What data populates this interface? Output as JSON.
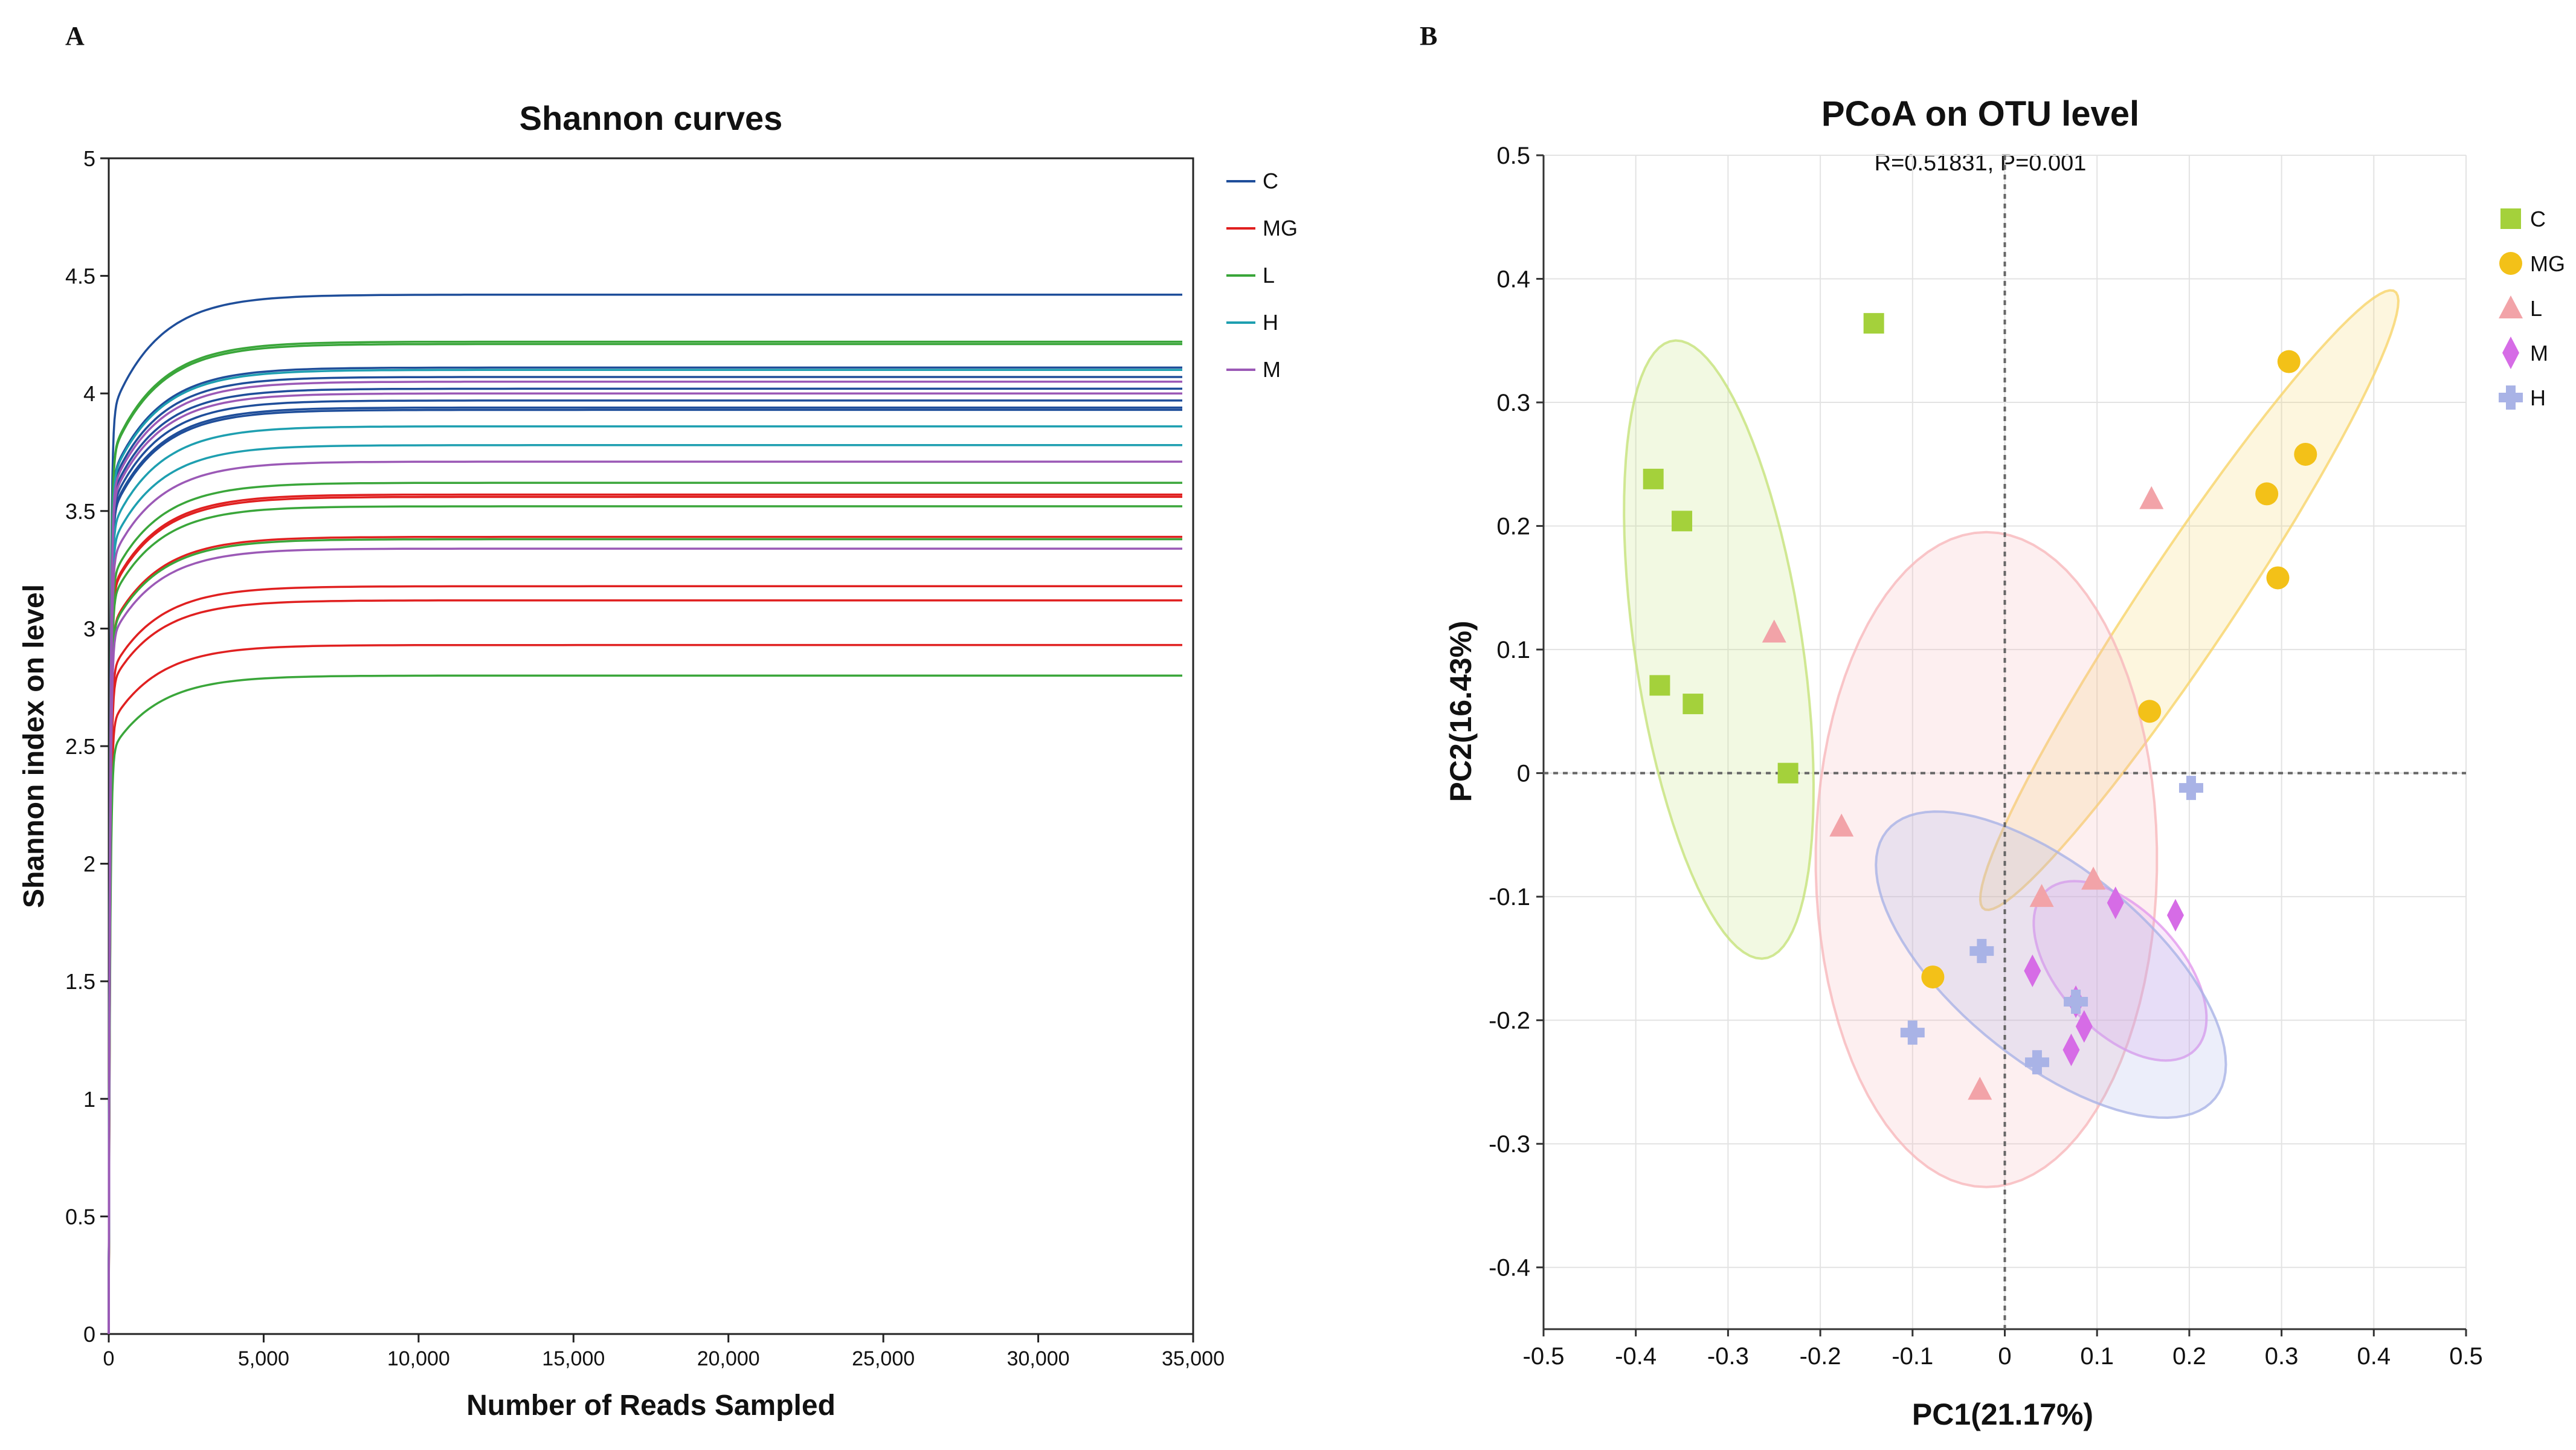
{
  "panel_a_letter": "A",
  "panel_b_letter": "B",
  "chart_data": [
    {
      "type": "line",
      "title": "Shannon curves",
      "xlabel": "Number of Reads Sampled",
      "ylabel": "Shannon index on level",
      "xlim": [
        0,
        35000
      ],
      "ylim": [
        0,
        5
      ],
      "x_ticks": [
        0,
        5000,
        10000,
        15000,
        20000,
        25000,
        30000,
        35000
      ],
      "x_tick_labels": [
        "0",
        "5,000",
        "10,000",
        "15,000",
        "20,000",
        "25,000",
        "30,000",
        "35,000"
      ],
      "y_ticks": [
        0,
        0.5,
        1,
        1.5,
        2,
        2.5,
        3,
        3.5,
        4,
        4.5,
        5
      ],
      "y_tick_labels": [
        "0",
        "0.5",
        "1",
        "1.5",
        "2",
        "2.5",
        "3",
        "3.5",
        "4",
        "4.5",
        "5"
      ],
      "grid": false,
      "legend_position": "top-right",
      "series": [
        {
          "name": "C",
          "color": "#1f4e9a",
          "plateaus": [
            4.42,
            4.11,
            4.07,
            4.02,
            3.97,
            3.94,
            3.93
          ]
        },
        {
          "name": "MG",
          "color": "#e02020",
          "plateaus": [
            3.57,
            3.56,
            3.39,
            3.18,
            3.12,
            2.93
          ]
        },
        {
          "name": "L",
          "color": "#3aa63a",
          "plateaus": [
            4.22,
            4.21,
            3.62,
            3.52,
            3.38,
            2.8
          ]
        },
        {
          "name": "H",
          "color": "#1e9fb0",
          "plateaus": [
            4.1,
            3.86,
            3.78
          ]
        },
        {
          "name": "M",
          "color": "#9b59b6",
          "plateaus": [
            4.05,
            4.0,
            3.71,
            3.34
          ]
        }
      ]
    },
    {
      "type": "scatter",
      "title": "PCoA on OTU level",
      "subtitle": "R=0.51831, P=0.001",
      "xlabel": "PC1(21.17%)",
      "ylabel": "PC2(16.43%)",
      "xlim": [
        -0.5,
        0.5
      ],
      "ylim": [
        -0.45,
        0.5
      ],
      "x_ticks": [
        -0.5,
        -0.4,
        -0.3,
        -0.2,
        -0.1,
        0,
        0.1,
        0.2,
        0.3,
        0.4,
        0.5
      ],
      "x_tick_labels": [
        "-0.5",
        "-0.4",
        "-0.3",
        "-0.2",
        "-0.1",
        "0",
        "0.1",
        "0.2",
        "0.3",
        "0.4",
        "0.5"
      ],
      "y_ticks": [
        -0.4,
        -0.3,
        -0.2,
        -0.1,
        0,
        0.1,
        0.2,
        0.3,
        0.4,
        0.5
      ],
      "y_tick_labels": [
        "-0.4",
        "-0.3",
        "-0.2",
        "-0.1",
        "0",
        "0.1",
        "0.2",
        "0.3",
        "0.4",
        "0.5"
      ],
      "grid": true,
      "legend_position": "right",
      "series": [
        {
          "name": "C",
          "marker": "square",
          "color": "#a4d13b",
          "points": [
            [
              -0.381,
              0.238
            ],
            [
              -0.35,
              0.204
            ],
            [
              -0.374,
              0.071
            ],
            [
              -0.338,
              0.056
            ],
            [
              -0.142,
              0.364
            ],
            [
              -0.235,
              0.0
            ]
          ],
          "ellipse": {
            "cx": -0.31,
            "cy": 0.1,
            "rx": 0.255,
            "ry": 0.09,
            "angle_deg": 102,
            "color": "#c5e27a"
          }
        },
        {
          "name": "MG",
          "marker": "circle",
          "color": "#f3c118",
          "points": [
            [
              0.308,
              0.333
            ],
            [
              0.326,
              0.258
            ],
            [
              0.284,
              0.226
            ],
            [
              0.296,
              0.158
            ],
            [
              0.157,
              0.05
            ],
            [
              -0.078,
              -0.165
            ]
          ],
          "ellipse": {
            "cx": 0.2,
            "cy": 0.14,
            "rx": 0.335,
            "ry": 0.045,
            "angle_deg": 48,
            "color": "#f7d56a"
          }
        },
        {
          "name": "L",
          "marker": "triangle",
          "color": "#f2a3a8",
          "points": [
            [
              0.159,
              0.222
            ],
            [
              -0.25,
              0.114
            ],
            [
              -0.177,
              -0.043
            ],
            [
              0.096,
              -0.086
            ],
            [
              0.04,
              -0.1
            ],
            [
              -0.027,
              -0.256
            ]
          ],
          "ellipse": {
            "cx": -0.02,
            "cy": -0.07,
            "rx": 0.265,
            "ry": 0.185,
            "angle_deg": 90,
            "color": "#f7b8bc"
          }
        },
        {
          "name": "M",
          "marker": "diamond",
          "color": "#d66ce6",
          "points": [
            [
              0.12,
              -0.105
            ],
            [
              0.185,
              -0.115
            ],
            [
              0.03,
              -0.16
            ],
            [
              0.077,
              -0.185
            ],
            [
              0.086,
              -0.205
            ],
            [
              0.072,
              -0.224
            ]
          ],
          "ellipse": {
            "cx": 0.125,
            "cy": -0.16,
            "rx": 0.105,
            "ry": 0.055,
            "angle_deg": -32,
            "color": "#e29aee"
          }
        },
        {
          "name": "H",
          "marker": "plus",
          "color": "#a9b3e6",
          "points": [
            [
              0.202,
              -0.012
            ],
            [
              -0.025,
              -0.144
            ],
            [
              0.077,
              -0.185
            ],
            [
              -0.1,
              -0.21
            ],
            [
              0.035,
              -0.234
            ]
          ],
          "ellipse": {
            "cx": 0.05,
            "cy": -0.155,
            "rx": 0.21,
            "ry": 0.085,
            "angle_deg": -28,
            "color": "#a9b3e6"
          }
        }
      ]
    }
  ]
}
